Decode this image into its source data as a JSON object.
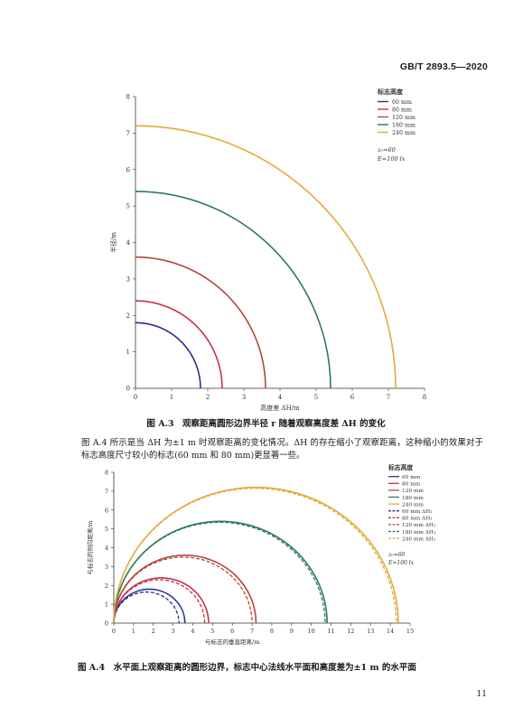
{
  "header": {
    "standard_code": "GB/T 2893.5—2020"
  },
  "figure_a3": {
    "caption": "图 A.3　观察距离圆形边界半径 r 随着观察高度差 ΔH 的变化",
    "legend_title": "标志高度",
    "params": [
      "z₀=60",
      "E=100 lx"
    ],
    "xlabel": "高度差 ΔH/m",
    "ylabel": "半径/m",
    "colors": [
      "#2b2f8c",
      "#c8324a",
      "#b5473a",
      "#2e7a55",
      "#e0ac3c"
    ]
  },
  "paragraph": "图 A.4 所示是当 ΔH 为±1 m 时观察距离的变化情况。ΔH 的存在缩小了观察距离，这种缩小的效果对于标志高度尺寸较小的标志(60 mm 和 80 mm)更显著一些。",
  "figure_a4": {
    "caption": "图 A.4　水平面上观察距离的圆形边界，标志中心法线水平面和高度差为±1 m 的水平面",
    "legend_title": "标志高度",
    "params": [
      "z₀=60",
      "E=100 lx"
    ],
    "xlabel": "与标志的垂直距离/m",
    "ylabel": "与标志的侧向距离/m"
  },
  "chart_data": [
    {
      "type": "line",
      "title": "",
      "xlabel": "高度差 ΔH/m",
      "ylabel": "半径/m",
      "xlim": [
        0,
        8
      ],
      "ylim": [
        0,
        8
      ],
      "xticks": [
        0,
        1,
        2,
        3,
        4,
        5,
        6,
        7,
        8
      ],
      "yticks": [
        0,
        1,
        2,
        3,
        4,
        5,
        6,
        7,
        8
      ],
      "series": [
        {
          "name": "60 mm",
          "radius": 1.8,
          "color": "#2b2f8c"
        },
        {
          "name": "80 mm",
          "radius": 2.4,
          "color": "#c8324a"
        },
        {
          "name": "120 mm",
          "radius": 3.6,
          "color": "#b5473a"
        },
        {
          "name": "180 mm",
          "radius": 5.4,
          "color": "#2e7a55"
        },
        {
          "name": "240 mm",
          "radius": 7.2,
          "color": "#e0ac3c"
        }
      ],
      "legend_position": "top-right"
    },
    {
      "type": "line",
      "title": "",
      "xlabel": "与标志的垂直距离/m",
      "ylabel": "与标志的侧向距离/m",
      "xlim": [
        0,
        15
      ],
      "ylim": [
        0,
        8
      ],
      "xticks": [
        0,
        1,
        2,
        3,
        4,
        5,
        6,
        7,
        8,
        9,
        10,
        11,
        12,
        13,
        14,
        15
      ],
      "yticks": [
        0,
        1,
        2,
        3,
        4,
        5,
        6,
        7,
        8
      ],
      "series": [
        {
          "name": "60 mm",
          "diameter": 3.6,
          "color": "#2b2f8c",
          "dashed": false
        },
        {
          "name": "80 mm",
          "diameter": 4.8,
          "color": "#c8324a",
          "dashed": false
        },
        {
          "name": "120 mm",
          "diameter": 7.2,
          "color": "#b5473a",
          "dashed": false
        },
        {
          "name": "180 mm",
          "diameter": 10.8,
          "color": "#2e7a55",
          "dashed": false
        },
        {
          "name": "240 mm",
          "diameter": 14.4,
          "color": "#e0ac3c",
          "dashed": false
        },
        {
          "name": "60 mm ΔH₁",
          "diameter": 3.3,
          "color": "#2b2f8c",
          "dashed": true
        },
        {
          "name": "80 mm ΔH₁",
          "diameter": 4.6,
          "color": "#c8324a",
          "dashed": true
        },
        {
          "name": "120 mm ΔH₁",
          "diameter": 7.0,
          "color": "#b5473a",
          "dashed": true
        },
        {
          "name": "180 mm ΔH₁",
          "diameter": 10.7,
          "color": "#2e7a55",
          "dashed": true
        },
        {
          "name": "240 mm ΔH₁",
          "diameter": 14.3,
          "color": "#e0ac3c",
          "dashed": true
        }
      ],
      "legend_position": "top-right"
    }
  ],
  "page_number": "11"
}
